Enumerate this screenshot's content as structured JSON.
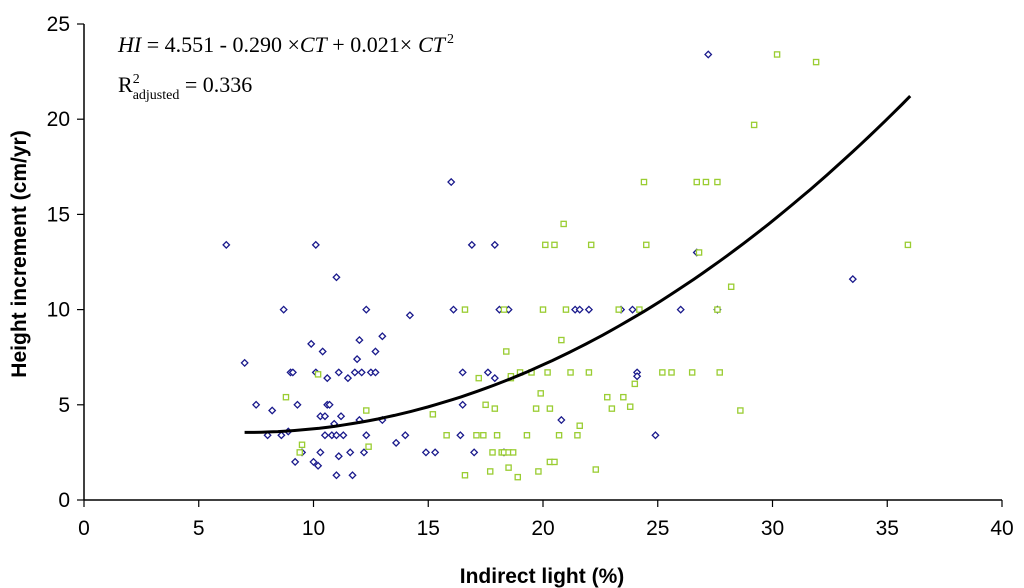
{
  "chart_data": {
    "type": "scatter",
    "title": "",
    "xlabel": "Indirect light (%)",
    "ylabel": "Height increment (cm/yr)",
    "xlim": [
      0,
      40
    ],
    "ylim": [
      0,
      25
    ],
    "xticks": [
      0,
      5,
      10,
      15,
      20,
      25,
      30,
      35,
      40
    ],
    "yticks": [
      0,
      5,
      10,
      15,
      20,
      25
    ],
    "grid": false,
    "legend": "none",
    "annotations": {
      "equation": {
        "hi": "HI",
        "part1": " = 4.551 - 0.290 ×",
        "ct1": "CT",
        "part2": "  + 0.021×",
        "ct2": "CT",
        "exp": "2"
      },
      "r2": {
        "r": "R",
        "sup": "2",
        "sub": "adjusted",
        "value": " = 0.336"
      }
    },
    "fit": {
      "type": "quadratic",
      "intercept": 4.551,
      "linear": -0.29,
      "quadratic": 0.021,
      "x_range": [
        7,
        36
      ]
    },
    "series": [
      {
        "name": "blue diamonds",
        "marker": "diamond",
        "color": "#1a1a8c",
        "points": [
          [
            6.2,
            13.4
          ],
          [
            7.0,
            7.2
          ],
          [
            7.5,
            5.0
          ],
          [
            8.0,
            3.4
          ],
          [
            8.2,
            4.7
          ],
          [
            8.6,
            3.4
          ],
          [
            8.7,
            10.0
          ],
          [
            8.9,
            3.6
          ],
          [
            9.0,
            6.7
          ],
          [
            9.1,
            6.7
          ],
          [
            9.2,
            2.0
          ],
          [
            9.3,
            5.0
          ],
          [
            9.5,
            2.5
          ],
          [
            9.9,
            8.2
          ],
          [
            10.0,
            2.0
          ],
          [
            10.1,
            6.7
          ],
          [
            10.1,
            13.4
          ],
          [
            10.2,
            1.8
          ],
          [
            10.3,
            2.5
          ],
          [
            10.3,
            4.4
          ],
          [
            10.4,
            7.8
          ],
          [
            10.5,
            4.4
          ],
          [
            10.5,
            3.4
          ],
          [
            10.6,
            5.0
          ],
          [
            10.6,
            6.4
          ],
          [
            10.7,
            5.0
          ],
          [
            10.8,
            3.4
          ],
          [
            10.9,
            4.0
          ],
          [
            11.0,
            1.3
          ],
          [
            11.0,
            3.4
          ],
          [
            11.0,
            11.7
          ],
          [
            11.1,
            2.3
          ],
          [
            11.1,
            6.7
          ],
          [
            11.2,
            4.4
          ],
          [
            11.3,
            3.4
          ],
          [
            11.5,
            6.4
          ],
          [
            11.6,
            2.5
          ],
          [
            11.7,
            1.3
          ],
          [
            11.8,
            6.7
          ],
          [
            11.9,
            7.4
          ],
          [
            12.0,
            4.2
          ],
          [
            12.0,
            8.4
          ],
          [
            12.1,
            6.7
          ],
          [
            12.2,
            2.5
          ],
          [
            12.3,
            3.4
          ],
          [
            12.3,
            10.0
          ],
          [
            12.5,
            6.7
          ],
          [
            12.7,
            6.7
          ],
          [
            12.7,
            7.8
          ],
          [
            13.0,
            8.6
          ],
          [
            13.0,
            4.2
          ],
          [
            13.6,
            3.0
          ],
          [
            14.0,
            3.4
          ],
          [
            14.2,
            9.7
          ],
          [
            14.9,
            2.5
          ],
          [
            15.3,
            2.5
          ],
          [
            16.0,
            16.7
          ],
          [
            16.1,
            10.0
          ],
          [
            16.4,
            3.4
          ],
          [
            16.5,
            6.7
          ],
          [
            16.5,
            5.0
          ],
          [
            16.9,
            13.4
          ],
          [
            17.0,
            2.5
          ],
          [
            17.6,
            6.7
          ],
          [
            17.9,
            6.4
          ],
          [
            17.9,
            13.4
          ],
          [
            18.1,
            10.0
          ],
          [
            18.3,
            2.5
          ],
          [
            18.5,
            10.0
          ],
          [
            20.8,
            4.2
          ],
          [
            21.4,
            10.0
          ],
          [
            21.6,
            10.0
          ],
          [
            22.0,
            10.0
          ],
          [
            23.4,
            10.0
          ],
          [
            23.9,
            10.0
          ],
          [
            24.1,
            6.7
          ],
          [
            24.1,
            6.5
          ],
          [
            24.9,
            3.4
          ],
          [
            26.0,
            10.0
          ],
          [
            26.7,
            13.0
          ],
          [
            27.2,
            23.4
          ],
          [
            27.6,
            10.0
          ],
          [
            33.5,
            11.6
          ]
        ]
      },
      {
        "name": "green squares",
        "marker": "square",
        "color": "#9acd32",
        "points": [
          [
            8.8,
            5.4
          ],
          [
            9.4,
            2.5
          ],
          [
            9.5,
            2.9
          ],
          [
            10.2,
            6.6
          ],
          [
            12.3,
            4.7
          ],
          [
            12.4,
            2.8
          ],
          [
            15.2,
            4.5
          ],
          [
            15.8,
            3.4
          ],
          [
            16.6,
            1.3
          ],
          [
            16.6,
            10.0
          ],
          [
            17.1,
            3.4
          ],
          [
            17.2,
            6.4
          ],
          [
            17.5,
            5.0
          ],
          [
            17.7,
            1.5
          ],
          [
            17.8,
            2.5
          ],
          [
            17.9,
            4.8
          ],
          [
            18.0,
            3.4
          ],
          [
            18.2,
            2.5
          ],
          [
            18.3,
            2.5
          ],
          [
            18.3,
            10.0
          ],
          [
            18.4,
            7.8
          ],
          [
            18.5,
            1.7
          ],
          [
            18.5,
            2.5
          ],
          [
            18.6,
            6.4
          ],
          [
            18.7,
            2.5
          ],
          [
            18.9,
            1.2
          ],
          [
            19.0,
            6.7
          ],
          [
            19.3,
            3.4
          ],
          [
            19.5,
            6.7
          ],
          [
            19.7,
            4.8
          ],
          [
            19.8,
            1.5
          ],
          [
            19.9,
            5.6
          ],
          [
            20.0,
            10.0
          ],
          [
            20.1,
            13.4
          ],
          [
            20.2,
            6.7
          ],
          [
            20.3,
            4.8
          ],
          [
            20.3,
            2.0
          ],
          [
            20.5,
            13.4
          ],
          [
            20.5,
            2.0
          ],
          [
            20.7,
            3.4
          ],
          [
            20.8,
            8.4
          ],
          [
            20.9,
            14.5
          ],
          [
            21.0,
            10.0
          ],
          [
            21.2,
            6.7
          ],
          [
            21.5,
            3.4
          ],
          [
            21.6,
            3.9
          ],
          [
            22.0,
            6.7
          ],
          [
            22.1,
            13.4
          ],
          [
            22.3,
            1.6
          ],
          [
            23.0,
            4.8
          ],
          [
            23.5,
            5.4
          ],
          [
            24.0,
            6.1
          ],
          [
            24.2,
            10.0
          ],
          [
            24.4,
            16.7
          ],
          [
            24.5,
            13.4
          ],
          [
            25.2,
            6.7
          ],
          [
            25.6,
            6.7
          ],
          [
            26.5,
            6.7
          ],
          [
            26.8,
            13.0
          ],
          [
            27.1,
            16.7
          ],
          [
            27.6,
            10.0
          ],
          [
            27.7,
            6.7
          ],
          [
            28.2,
            11.2
          ],
          [
            28.6,
            4.7
          ],
          [
            29.2,
            19.7
          ],
          [
            30.2,
            23.4
          ],
          [
            31.9,
            23.0
          ],
          [
            35.9,
            13.4
          ],
          [
            23.8,
            4.9
          ],
          [
            22.8,
            5.4
          ],
          [
            26.7,
            16.7
          ],
          [
            27.6,
            16.7
          ],
          [
            23.3,
            10.0
          ],
          [
            18.6,
            6.5
          ],
          [
            17.4,
            3.4
          ]
        ]
      }
    ]
  }
}
